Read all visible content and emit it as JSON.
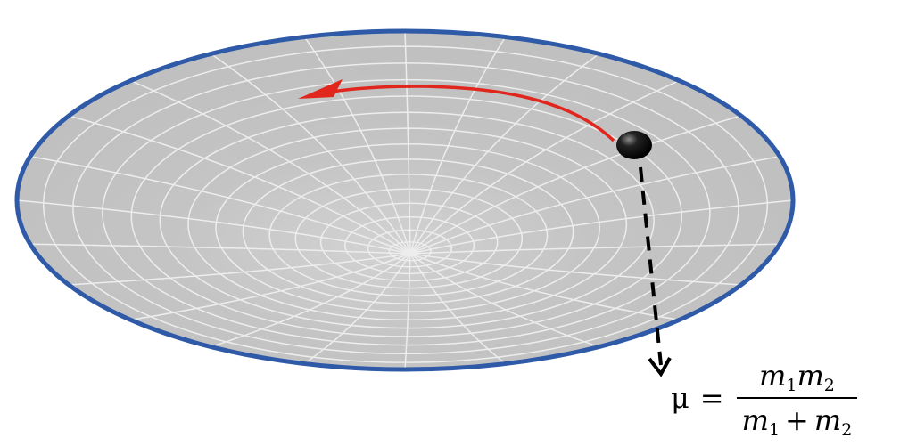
{
  "formula": {
    "symbol": "μ",
    "equals": "=",
    "numerator": {
      "factor1": "m",
      "sub1": "1",
      "factor2": "m",
      "sub2": "2"
    },
    "denominator": {
      "term1": "m",
      "sub1": "1",
      "operator": "+",
      "term2": "m",
      "sub2": "2"
    }
  },
  "colors": {
    "surface_fill": "#c4c4c4",
    "surface_outline": "#2f5aa8",
    "grid_lines": "#ededed",
    "orbit_arrow": "#e0261d",
    "body": "#111111",
    "dashed_pointer": "#000000"
  }
}
